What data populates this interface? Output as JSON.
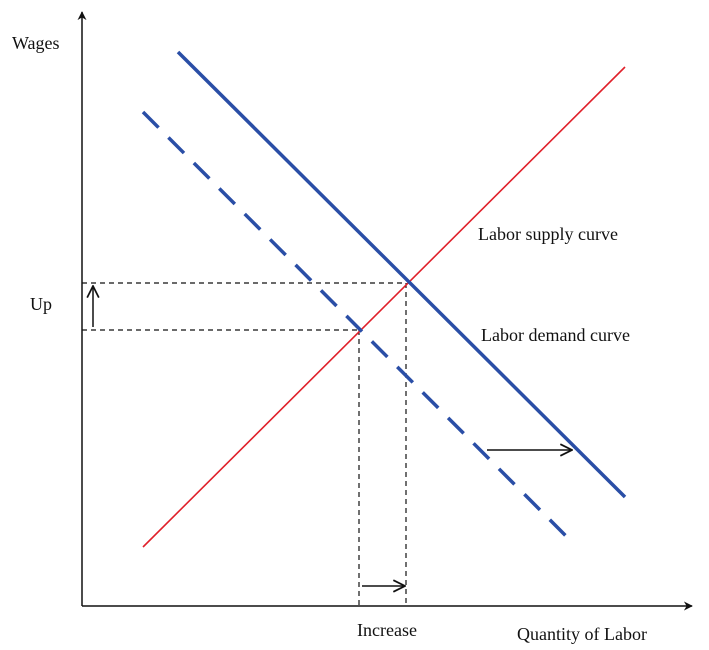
{
  "axes": {
    "y_label": "Wages",
    "x_label": "Quantity of Labor"
  },
  "curves": {
    "supply": "Labor supply curve",
    "demand": "Labor demand curve"
  },
  "annotations": {
    "wage_change": "Up",
    "quantity_change": "Increase"
  }
}
